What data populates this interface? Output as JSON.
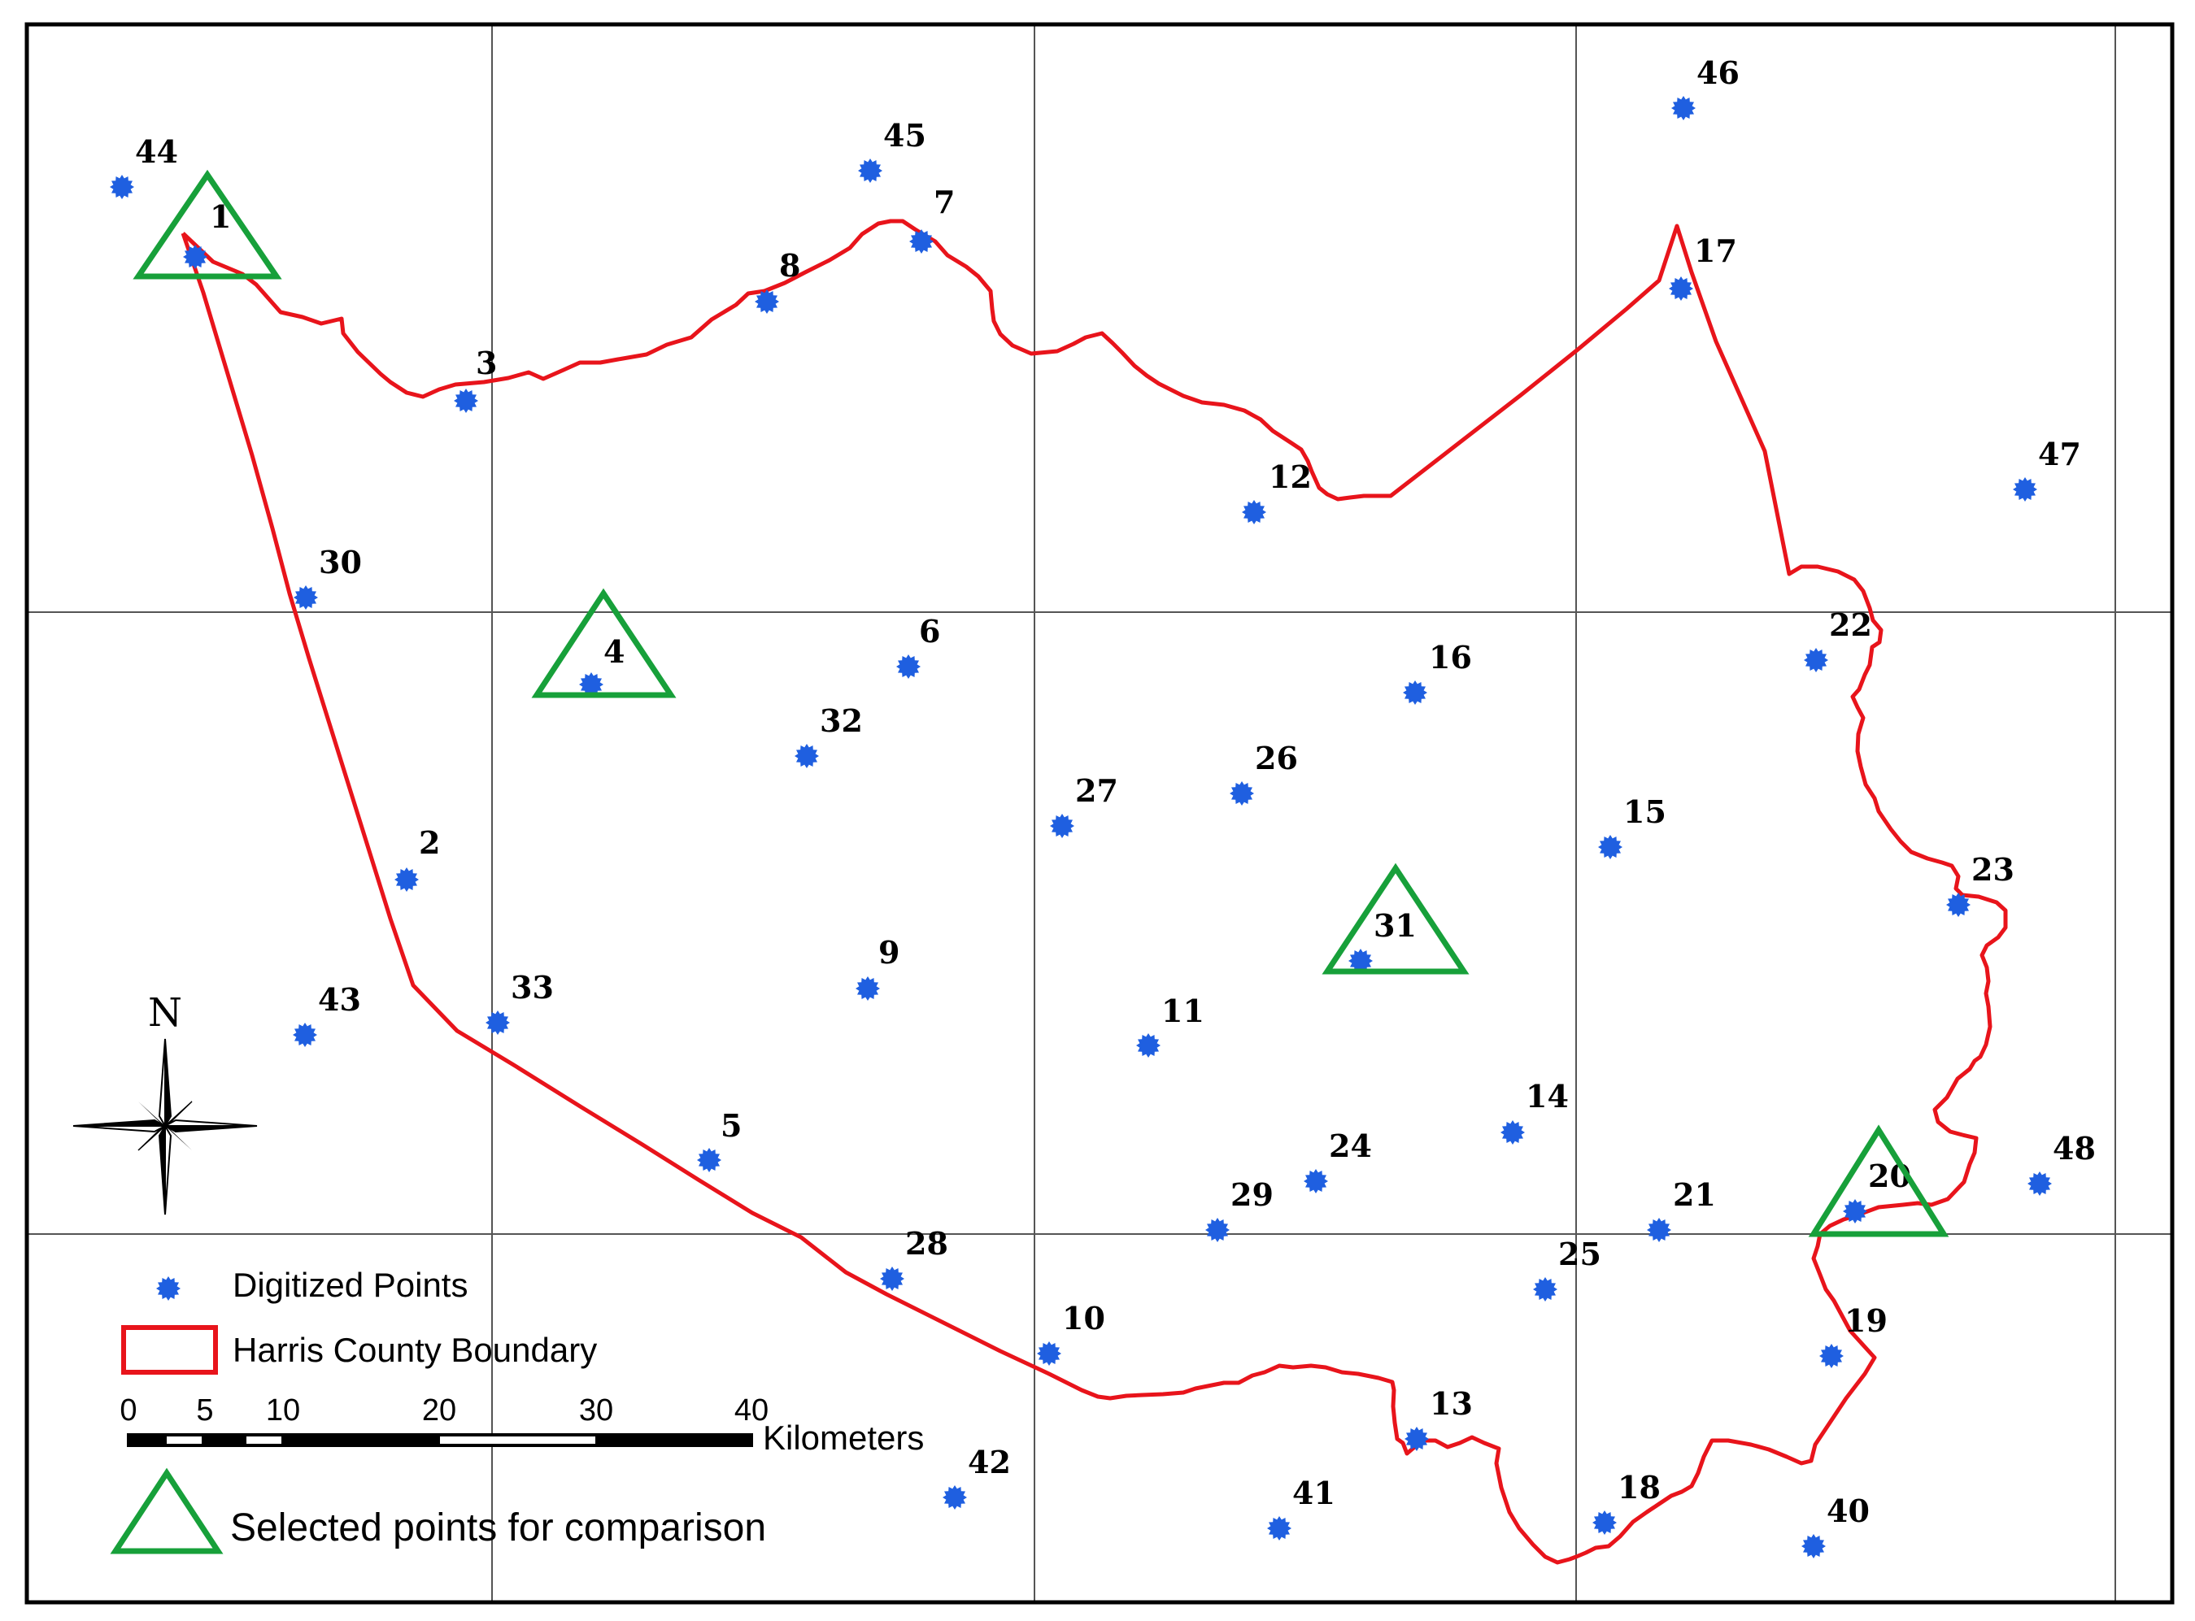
{
  "colors": {
    "point": "#1f5fe0",
    "boundary": "#e8141b",
    "selected": "#17a03a",
    "grid": "#555555",
    "frame": "#000000"
  },
  "legend": {
    "digitized_points": "Digitized Points",
    "county_boundary": "Harris County Boundary",
    "selected_points": "Selected points for comparison",
    "scale_unit": "Kilometers",
    "scale_ticks": [
      "0",
      "5",
      "10",
      "20",
      "30",
      "40"
    ]
  },
  "north_arrow": {
    "letter": "N",
    "icon": "north-arrow-icon"
  },
  "points": [
    {
      "id": "1",
      "selected": true
    },
    {
      "id": "2"
    },
    {
      "id": "3"
    },
    {
      "id": "4",
      "selected": true
    },
    {
      "id": "5"
    },
    {
      "id": "6"
    },
    {
      "id": "7"
    },
    {
      "id": "8"
    },
    {
      "id": "9"
    },
    {
      "id": "10"
    },
    {
      "id": "11"
    },
    {
      "id": "12"
    },
    {
      "id": "13"
    },
    {
      "id": "14"
    },
    {
      "id": "15"
    },
    {
      "id": "16"
    },
    {
      "id": "17"
    },
    {
      "id": "18"
    },
    {
      "id": "19"
    },
    {
      "id": "20",
      "selected": true
    },
    {
      "id": "21"
    },
    {
      "id": "22"
    },
    {
      "id": "23"
    },
    {
      "id": "24"
    },
    {
      "id": "25"
    },
    {
      "id": "26"
    },
    {
      "id": "27"
    },
    {
      "id": "28"
    },
    {
      "id": "29"
    },
    {
      "id": "30"
    },
    {
      "id": "31",
      "selected": true
    },
    {
      "id": "32"
    },
    {
      "id": "33"
    },
    {
      "id": "40"
    },
    {
      "id": "41"
    },
    {
      "id": "42"
    },
    {
      "id": "43"
    },
    {
      "id": "44"
    },
    {
      "id": "45"
    },
    {
      "id": "46"
    },
    {
      "id": "47"
    },
    {
      "id": "48"
    }
  ]
}
